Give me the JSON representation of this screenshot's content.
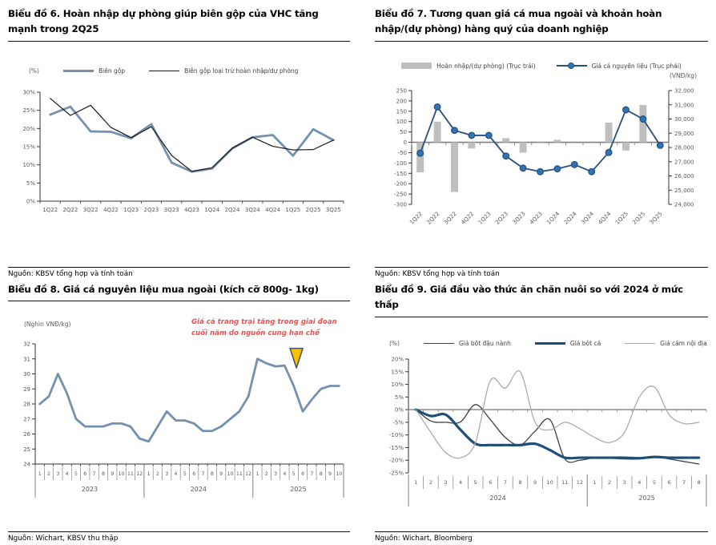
{
  "panels": {
    "chart6": {
      "source": "Nguồn: KBSV tổng hợp và tính toán"
    },
    "chart7": {
      "source": "Nguồn: KBSV tổng hợp và tính toán"
    },
    "chart8": {
      "source": "Nguồn: Wichart, KBSV thu thập"
    },
    "chart9": {
      "source": "Nguồn: Wichart, Bloomberg"
    }
  },
  "chart_data": [
    {
      "id": "chart6",
      "type": "line",
      "title": "Biểu đồ 6. Hoàn nhập dự phòng giúp biên gộp của VHC tăng mạnh trong 2Q25",
      "unit": "(%)",
      "categories": [
        "1Q22",
        "2Q22",
        "3Q22",
        "4Q22",
        "1Q23",
        "2Q23",
        "3Q23",
        "4Q23",
        "1Q24",
        "2Q24",
        "3Q24",
        "4Q24",
        "1Q25",
        "2Q25",
        "3Q25"
      ],
      "series": [
        {
          "name": "Biên gộp",
          "color": "#7591B0",
          "width": 2.8,
          "values": [
            23.8,
            26,
            19.2,
            19.1,
            17.3,
            21.2,
            10.6,
            8.1,
            9,
            14.5,
            17.6,
            18.2,
            12.5,
            19.8,
            16.8
          ]
        },
        {
          "name": "Biên gộp loại trừ hoàn nhập/dự phòng",
          "color": "#1a1a1a",
          "width": 1.2,
          "values": [
            28.3,
            23.6,
            26.4,
            20.3,
            17.5,
            20.5,
            12.6,
            8.2,
            9.2,
            14.6,
            17.6,
            15.1,
            14.1,
            14.2,
            16.8
          ]
        }
      ],
      "ylim": [
        0,
        30
      ],
      "ystep": 5,
      "yfmt": "pct",
      "grid": false,
      "legend_position": "top"
    },
    {
      "id": "chart7",
      "type": "combo",
      "title": "Biểu đồ 7. Tương quan giá cá mua ngoài và khoản hoàn nhập/(dự phòng) hàng quý của doanh nghiệp",
      "right_unit": "(VNĐ/kg)",
      "categories": [
        "1Q22",
        "2Q22",
        "3Q22",
        "4Q22",
        "1Q23",
        "2Q23",
        "3Q23",
        "4Q23",
        "1Q24",
        "2Q24",
        "3Q24",
        "4Q24",
        "1Q25",
        "2Q25",
        "3Q25"
      ],
      "bar_series": {
        "name": "Hoàn nhập/(dự phòng) (Trục trái)",
        "axis": "left",
        "color": "#BFBFBF",
        "values": [
          -145,
          100,
          -240,
          -30,
          0,
          20,
          -50,
          -5,
          12,
          0,
          0,
          95,
          -40,
          180,
          0
        ]
      },
      "line_series": {
        "name": "Giá cá nguyên liệu (Trục phải)",
        "axis": "right",
        "color": "#27507E",
        "marker_fill": "#2E75B6",
        "values": [
          27600,
          30850,
          29200,
          28850,
          28850,
          27400,
          26550,
          26300,
          26500,
          26800,
          26300,
          27650,
          30650,
          30000,
          28150
        ]
      },
      "ylim_left": [
        -300,
        250
      ],
      "ystep_left": 50,
      "ylim_right": [
        24000,
        32000
      ],
      "ystep_right": 1000,
      "grid": false,
      "legend_position": "top"
    },
    {
      "id": "chart8",
      "type": "line",
      "title": "Biểu đồ 8. Giá cá nguyên liệu mua ngoài (kích cỡ 800g- 1kg)",
      "unit": "(Nghìn VNĐ/kg)",
      "x_groups": [
        {
          "label": "2023",
          "months": [
            "1",
            "2",
            "3",
            "4",
            "5",
            "6",
            "7",
            "8",
            "9",
            "10",
            "11",
            "12"
          ]
        },
        {
          "label": "2024",
          "months": [
            "1",
            "2",
            "3",
            "4",
            "5",
            "6",
            "7",
            "8",
            "9",
            "10",
            "11",
            "12"
          ]
        },
        {
          "label": "2025",
          "months": [
            "1",
            "2",
            "3",
            "4",
            "5",
            "6",
            "7",
            "8",
            "9",
            "10"
          ]
        }
      ],
      "series": [
        {
          "name": "Giá cá nguyên liệu mua ngoài",
          "color": "#7591B0",
          "width": 2.8,
          "values": [
            28,
            28.5,
            30,
            28.7,
            27,
            26.5,
            26.5,
            26.5,
            26.7,
            26.7,
            26.5,
            25.7,
            25.5,
            26.5,
            27.5,
            26.9,
            26.9,
            26.7,
            26.2,
            26.2,
            26.5,
            27,
            27.5,
            28.5,
            31,
            30.7,
            30.5,
            30.55,
            29.2,
            27.5,
            28.3,
            29,
            29.2,
            29.2
          ]
        }
      ],
      "ylim": [
        24,
        32
      ],
      "ystep": 1,
      "yfmt": "num",
      "grid": false,
      "annotation": {
        "text": "Giá cá trang trại tăng trong giai đoạn cuối năm do nguồn cung hạn chế",
        "color": "#FB4B4B",
        "marker": "triangle-down",
        "marker_fill": "#FFC000",
        "marker_stroke": "#44546A",
        "marker_index": 28.3,
        "marker_top": 31.7,
        "marker_tip": 30.4
      }
    },
    {
      "id": "chart9",
      "type": "line",
      "smooth": true,
      "title": "Biểu đồ 9. Giá đầu vào thức ăn chăn nuôi so với 2024 ở mức thấp",
      "unit": "(%)",
      "x_groups": [
        {
          "label": "2024",
          "months": [
            "1",
            "2",
            "3",
            "4",
            "5",
            "6",
            "7",
            "8",
            "9",
            "10",
            "11",
            "12"
          ]
        },
        {
          "label": "2025",
          "months": [
            "1",
            "2",
            "3",
            "4",
            "5",
            "6",
            "7",
            "8"
          ]
        }
      ],
      "series": [
        {
          "name": "Giá bột đậu nành",
          "color": "#404040",
          "width": 1.3,
          "values": [
            0,
            -4.5,
            -5,
            -4.8,
            2,
            -4,
            -11,
            -14,
            -8.5,
            -4,
            -19.5,
            -20,
            -19,
            -19.2,
            -19.5,
            -19.5,
            -18.5,
            -19.5,
            -20.5,
            -21.5
          ]
        },
        {
          "name": "Giá bột cá",
          "color": "#1F4E79",
          "width": 3.2,
          "values": [
            0,
            -2.5,
            -2,
            -8,
            -13.5,
            -14,
            -14,
            -14,
            -13.5,
            -16,
            -19,
            -19,
            -19,
            -19,
            -19,
            -19.2,
            -18.7,
            -19,
            -19,
            -19
          ]
        },
        {
          "name": "Giá cám nội địa",
          "color": "#ABABAB",
          "width": 1.3,
          "values": [
            0,
            -9,
            -17,
            -19,
            -13,
            11.5,
            8.5,
            15,
            -5,
            -8,
            -5,
            -7.5,
            -11,
            -13,
            -9,
            5,
            9,
            -2,
            -5.5,
            -5
          ]
        }
      ],
      "ylim": [
        -25,
        20
      ],
      "ystep": 5,
      "yfmt": "pct",
      "grid": false,
      "legend_position": "top"
    }
  ]
}
